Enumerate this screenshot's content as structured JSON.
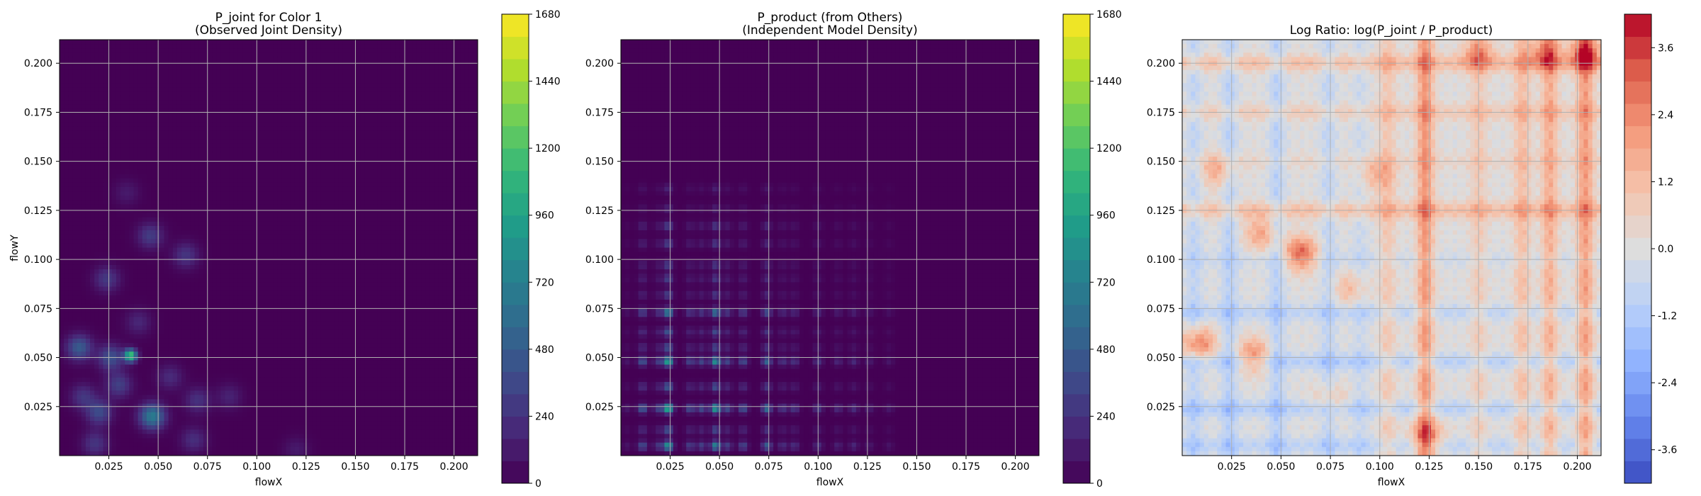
{
  "chart_data": [
    {
      "type": "heatmap",
      "title": "P_joint for Color 1\n(Observed Joint Density)",
      "xlabel": "flowX",
      "ylabel": "flowY",
      "xlim": [
        0.0,
        0.212
      ],
      "ylim": [
        0.0,
        0.212
      ],
      "x_ticks": [
        "0.025",
        "0.050",
        "0.075",
        "0.100",
        "0.125",
        "0.150",
        "0.175",
        "0.200"
      ],
      "y_ticks": [
        "0.025",
        "0.050",
        "0.075",
        "0.100",
        "0.125",
        "0.150",
        "0.175",
        "0.200"
      ],
      "grid": true,
      "colormap": "viridis",
      "colorbar": {
        "min": 0,
        "max": 1680,
        "ticks": [
          "0",
          "240",
          "480",
          "720",
          "960",
          "1200",
          "1440",
          "1680"
        ]
      },
      "hotspots": [
        {
          "x": 0.036,
          "y": 0.051,
          "value": 1200
        },
        {
          "x": 0.047,
          "y": 0.02,
          "value": 700
        },
        {
          "x": 0.01,
          "y": 0.055,
          "value": 480
        },
        {
          "x": 0.026,
          "y": 0.05,
          "value": 420
        },
        {
          "x": 0.02,
          "y": 0.022,
          "value": 380
        },
        {
          "x": 0.046,
          "y": 0.112,
          "value": 300
        },
        {
          "x": 0.024,
          "y": 0.09,
          "value": 280
        },
        {
          "x": 0.064,
          "y": 0.102,
          "value": 260
        },
        {
          "x": 0.03,
          "y": 0.036,
          "value": 320
        },
        {
          "x": 0.07,
          "y": 0.028,
          "value": 240
        },
        {
          "x": 0.068,
          "y": 0.008,
          "value": 220
        },
        {
          "x": 0.018,
          "y": 0.006,
          "value": 260
        },
        {
          "x": 0.056,
          "y": 0.04,
          "value": 200
        },
        {
          "x": 0.086,
          "y": 0.03,
          "value": 160
        },
        {
          "x": 0.12,
          "y": 0.003,
          "value": 120
        },
        {
          "x": 0.012,
          "y": 0.03,
          "value": 260
        },
        {
          "x": 0.04,
          "y": 0.068,
          "value": 180
        },
        {
          "x": 0.034,
          "y": 0.134,
          "value": 120
        }
      ]
    },
    {
      "type": "heatmap",
      "title": "P_product (from Others)\n(Independent Model Density)",
      "xlabel": "flowX",
      "ylabel": "",
      "xlim": [
        0.0,
        0.212
      ],
      "ylim": [
        0.0,
        0.212
      ],
      "x_ticks": [
        "0.025",
        "0.050",
        "0.075",
        "0.100",
        "0.125",
        "0.150",
        "0.175",
        "0.200"
      ],
      "y_ticks": [
        "0.025",
        "0.050",
        "0.075",
        "0.100",
        "0.125",
        "0.150",
        "0.175",
        "0.200"
      ],
      "grid": true,
      "colormap": "viridis",
      "colorbar": {
        "min": 0,
        "max": 1680,
        "ticks": [
          "0",
          "240",
          "480",
          "720",
          "960",
          "1200",
          "1440",
          "1680"
        ]
      },
      "marginal_x": [
        {
          "x": 0.003,
          "w": 0.1
        },
        {
          "x": 0.011,
          "w": 0.45
        },
        {
          "x": 0.019,
          "w": 0.3
        },
        {
          "x": 0.024,
          "w": 1.0
        },
        {
          "x": 0.035,
          "w": 0.35
        },
        {
          "x": 0.041,
          "w": 0.35
        },
        {
          "x": 0.048,
          "w": 0.85
        },
        {
          "x": 0.054,
          "w": 0.35
        },
        {
          "x": 0.062,
          "w": 0.4
        },
        {
          "x": 0.074,
          "w": 0.55
        },
        {
          "x": 0.082,
          "w": 0.25
        },
        {
          "x": 0.088,
          "w": 0.25
        },
        {
          "x": 0.1,
          "w": 0.25
        },
        {
          "x": 0.11,
          "w": 0.18
        },
        {
          "x": 0.118,
          "w": 0.2
        },
        {
          "x": 0.126,
          "w": 0.12
        },
        {
          "x": 0.136,
          "w": 0.1
        }
      ],
      "marginal_y": [
        {
          "y": 0.005,
          "w": 0.8
        },
        {
          "y": 0.013,
          "w": 0.4
        },
        {
          "y": 0.024,
          "w": 1.0
        },
        {
          "y": 0.035,
          "w": 0.45
        },
        {
          "y": 0.048,
          "w": 0.9
        },
        {
          "y": 0.055,
          "w": 0.4
        },
        {
          "y": 0.063,
          "w": 0.4
        },
        {
          "y": 0.073,
          "w": 0.7
        },
        {
          "y": 0.082,
          "w": 0.3
        },
        {
          "y": 0.09,
          "w": 0.3
        },
        {
          "y": 0.097,
          "w": 0.3
        },
        {
          "y": 0.108,
          "w": 0.3
        },
        {
          "y": 0.117,
          "w": 0.3
        },
        {
          "y": 0.126,
          "w": 0.15
        },
        {
          "y": 0.136,
          "w": 0.15
        }
      ],
      "peak": {
        "x": 0.024,
        "y": 0.024,
        "value": 1150
      }
    },
    {
      "type": "heatmap",
      "title": "Log Ratio: log(P_joint / P_product)",
      "xlabel": "flowX",
      "ylabel": "",
      "xlim": [
        0.0,
        0.212
      ],
      "ylim": [
        0.0,
        0.212
      ],
      "x_ticks": [
        "0.025",
        "0.050",
        "0.075",
        "0.100",
        "0.125",
        "0.150",
        "0.175",
        "0.200"
      ],
      "y_ticks": [
        "0.025",
        "0.050",
        "0.075",
        "0.100",
        "0.125",
        "0.150",
        "0.175",
        "0.200"
      ],
      "grid": true,
      "colormap": "coolwarm",
      "colorbar": {
        "min": -4.2,
        "max": 4.2,
        "ticks": [
          "-3.6",
          "-2.4",
          "-1.2",
          "0.0",
          "1.2",
          "2.4",
          "3.6"
        ]
      },
      "col_effects": [
        {
          "x": 0.006,
          "v": -0.8
        },
        {
          "x": 0.024,
          "v": -1.0
        },
        {
          "x": 0.048,
          "v": -1.0
        },
        {
          "x": 0.074,
          "v": -0.8
        },
        {
          "x": 0.09,
          "v": -0.5
        },
        {
          "x": 0.104,
          "v": 0.9
        },
        {
          "x": 0.123,
          "v": 2.2
        },
        {
          "x": 0.15,
          "v": 0.8
        },
        {
          "x": 0.172,
          "v": 1.2
        },
        {
          "x": 0.186,
          "v": 1.6
        },
        {
          "x": 0.204,
          "v": 2.0
        }
      ],
      "row_effects": [
        {
          "y": 0.005,
          "v": -0.8
        },
        {
          "y": 0.024,
          "v": -1.0
        },
        {
          "y": 0.048,
          "v": -1.0
        },
        {
          "y": 0.073,
          "v": -0.8
        },
        {
          "y": 0.1,
          "v": -0.4
        },
        {
          "y": 0.125,
          "v": 1.2
        },
        {
          "y": 0.15,
          "v": 0.4
        },
        {
          "y": 0.175,
          "v": 0.8
        },
        {
          "y": 0.2,
          "v": 1.2
        }
      ],
      "blobs": [
        {
          "x": 0.06,
          "y": 0.103,
          "v": 3.2
        },
        {
          "x": 0.036,
          "y": 0.051,
          "v": 2.4
        },
        {
          "x": 0.008,
          "y": 0.057,
          "v": 2.8
        },
        {
          "x": 0.04,
          "y": 0.113,
          "v": 1.8
        },
        {
          "x": 0.018,
          "y": 0.145,
          "v": 1.6
        },
        {
          "x": 0.204,
          "y": 0.205,
          "v": 2.6
        },
        {
          "x": 0.183,
          "y": 0.205,
          "v": 2.0
        },
        {
          "x": 0.15,
          "y": 0.205,
          "v": 1.8
        },
        {
          "x": 0.124,
          "y": 0.01,
          "v": 2.0
        },
        {
          "x": 0.098,
          "y": 0.143,
          "v": 1.4
        },
        {
          "x": 0.085,
          "y": 0.085,
          "v": 1.3
        },
        {
          "x": 0.075,
          "y": 0.028,
          "v": 1.2
        }
      ]
    }
  ]
}
